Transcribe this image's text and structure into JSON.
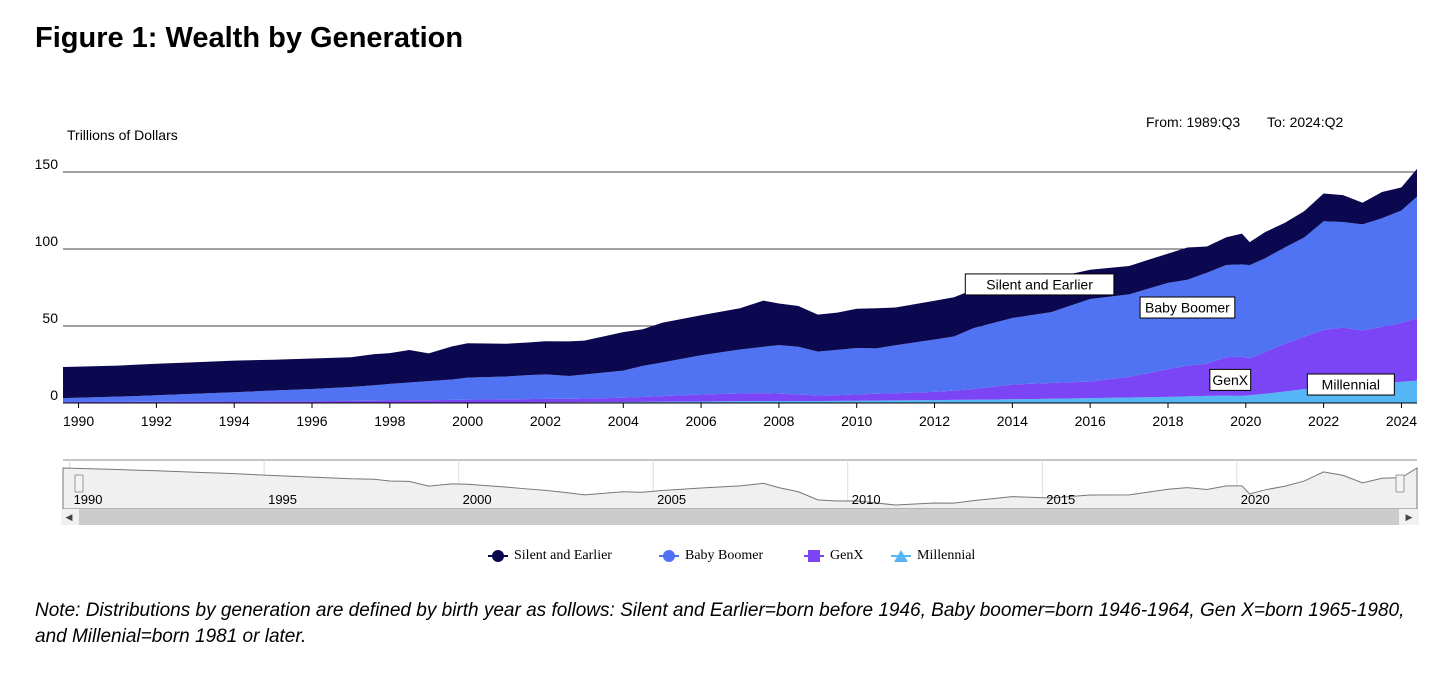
{
  "page": {
    "title": "Figure 1: Wealth by Generation",
    "from_label": "From: 1989:Q3",
    "to_label": "To: 2024:Q2",
    "note": "Note: Distributions by generation are defined by birth year as follows: Silent and Earlier=born before 1946, Baby boomer=born 1946-1964, Gen X=born 1965-1980, and Millenial=born 1981 or later."
  },
  "colors": {
    "silent": "#0c0850",
    "boomer": "#4f73f2",
    "genx": "#7b45f5",
    "millennial": "#55b6f5",
    "navigator_fill": "#f0f0f0",
    "navigator_line": "#777777"
  },
  "chart_data": {
    "type": "area",
    "stacked": true,
    "title": "Figure 1: Wealth by Generation",
    "ylabel": "Trillions of Dollars",
    "ylim": [
      0,
      150
    ],
    "yticks": [
      0,
      50,
      100,
      150
    ],
    "xlim": [
      1989.6,
      2024.4
    ],
    "xticks": [
      1990,
      1992,
      1994,
      1996,
      1998,
      2000,
      2002,
      2004,
      2006,
      2008,
      2010,
      2012,
      2014,
      2016,
      2018,
      2020,
      2022,
      2024
    ],
    "navigator_ticks": [
      1990,
      1995,
      2000,
      2005,
      2010,
      2015,
      2020
    ],
    "legend_position": "bottom-center",
    "x": [
      1989.6,
      1991,
      1992,
      1993,
      1994,
      1995,
      1996,
      1997,
      1997.6,
      1998,
      1998.5,
      1999,
      1999.6,
      2000,
      2001,
      2001.5,
      2002,
      2002.6,
      2003,
      2004,
      2004.5,
      2005,
      2006,
      2007,
      2007.6,
      2008,
      2008.5,
      2009,
      2009.5,
      2010,
      2010.5,
      2011,
      2012,
      2012.5,
      2013,
      2014,
      2015,
      2016,
      2017,
      2018,
      2018.5,
      2019,
      2019.5,
      2019.9,
      2020.1,
      2020.5,
      2021,
      2021.5,
      2022,
      2022.5,
      2023,
      2023.5,
      2024,
      2024.4
    ],
    "series": [
      {
        "name": "Millennial",
        "key": "millennial",
        "values": [
          0,
          0,
          0,
          0,
          0,
          0,
          0,
          0,
          0,
          0,
          0,
          0,
          0.1,
          0.2,
          0.3,
          0.3,
          0.4,
          0.4,
          0.5,
          0.6,
          0.7,
          0.8,
          1.0,
          1.2,
          1.3,
          1.3,
          1.3,
          1.3,
          1.4,
          1.5,
          1.6,
          1.7,
          1.9,
          2.0,
          2.1,
          2.4,
          2.8,
          3.2,
          3.6,
          4.0,
          4.3,
          4.6,
          4.8,
          4.6,
          5.0,
          6.0,
          7.5,
          9.0,
          10.5,
          11.0,
          11.5,
          12.5,
          13.8,
          14.5
        ]
      },
      {
        "name": "GenX",
        "key": "genx",
        "values": [
          0.6,
          0.7,
          0.8,
          0.9,
          1.0,
          1.1,
          1.2,
          1.4,
          1.5,
          1.6,
          1.7,
          1.8,
          1.9,
          2.0,
          2.1,
          2.2,
          2.3,
          2.3,
          2.4,
          2.8,
          3.2,
          3.7,
          4.5,
          5.0,
          5.1,
          4.8,
          4.2,
          3.6,
          3.7,
          4.0,
          4.4,
          4.6,
          5.3,
          6.0,
          7.0,
          9.6,
          10.2,
          10.8,
          13.4,
          18.0,
          20.0,
          21.0,
          25.0,
          25.4,
          24.0,
          27.0,
          31.0,
          34.0,
          37.0,
          38.0,
          35.5,
          37.0,
          38.2,
          40.5
        ]
      },
      {
        "name": "Baby Boomer",
        "key": "boomer",
        "values": [
          2.6,
          3.4,
          4.2,
          5.1,
          6.0,
          7.0,
          7.9,
          9.0,
          10.0,
          10.8,
          11.6,
          12.4,
          13.3,
          14.3,
          14.8,
          15.5,
          15.9,
          14.8,
          15.6,
          17.6,
          20.2,
          21.8,
          25.5,
          28.5,
          30.1,
          31.5,
          31.0,
          28.5,
          29.4,
          30.2,
          29.5,
          31.2,
          34.0,
          35.2,
          39.5,
          43.2,
          46.0,
          53.5,
          53.5,
          56.0,
          55.7,
          59.0,
          59.8,
          60.0,
          60.5,
          61.0,
          62.5,
          64.5,
          70.5,
          68.5,
          69.0,
          70.5,
          73.0,
          79.0
        ]
      },
      {
        "name": "Silent and Earlier",
        "key": "silent",
        "values": [
          20.2,
          20.2,
          20.5,
          20.5,
          20.5,
          20.0,
          19.8,
          19.3,
          20.2,
          20.0,
          21.1,
          18.0,
          21.5,
          22.3,
          21.3,
          21.2,
          21.5,
          22.5,
          22.0,
          25.0,
          23.8,
          25.8,
          26.0,
          26.8,
          30.0,
          27.0,
          26.5,
          24.0,
          24.2,
          25.5,
          26.0,
          24.5,
          25.2,
          25.5,
          25.0,
          24.8,
          22.0,
          19.0,
          18.5,
          19.0,
          21.0,
          17.0,
          18.0,
          20.0,
          15.0,
          17.0,
          16.0,
          17.0,
          18.0,
          17.5,
          14.0,
          17.0,
          15.0,
          18.0
        ]
      }
    ],
    "annotations": [
      {
        "key": "silent",
        "text": "Silent and Earlier",
        "x": 2014.7,
        "y": 77
      },
      {
        "key": "boomer",
        "text": "Baby Boomer",
        "x": 2018.5,
        "y": 62
      },
      {
        "key": "genx",
        "text": "GenX",
        "x": 2019.6,
        "y": 15
      },
      {
        "key": "millennial",
        "text": "Millennial",
        "x": 2022.7,
        "y": 12
      }
    ],
    "legend": [
      {
        "key": "silent",
        "label": "Silent and Earlier",
        "marker": "circle"
      },
      {
        "key": "boomer",
        "label": "Baby Boomer",
        "marker": "circle"
      },
      {
        "key": "genx",
        "label": "GenX",
        "marker": "square"
      },
      {
        "key": "millennial",
        "label": "Millennial",
        "marker": "triangle"
      }
    ]
  }
}
